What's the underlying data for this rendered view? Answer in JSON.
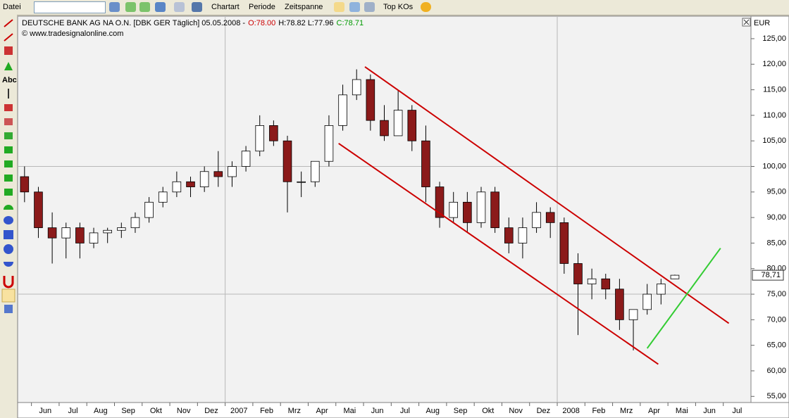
{
  "toolbar": {
    "menu": "Datei",
    "chart_type": "Chartart",
    "period": "Periode",
    "timespan": "Zeitspanne",
    "top": "Top KOs"
  },
  "tools": {
    "text_tool": "Abc"
  },
  "chart_data": {
    "type": "candlestick",
    "title": "DEUTSCHE BANK AG NA O.N. [DBK GER  Täglich] 05.05.2008 -",
    "quote_open": "O:78.00",
    "quote_hl": "H:78.82 L:77.96",
    "quote_close": "C:78.71",
    "source": "© www.tradesignalonline.com",
    "y_label": "EUR",
    "categories": [
      null,
      "Jun",
      null,
      "Jul",
      null,
      "Aug",
      null,
      "Sep",
      null,
      "Okt",
      null,
      "Nov",
      null,
      "Dez",
      null,
      "2007",
      null,
      "Feb",
      null,
      "Mrz",
      null,
      "Apr",
      null,
      "Mai",
      null,
      "Jun",
      null,
      "Jul",
      null,
      "Aug",
      null,
      "Sep",
      null,
      "Okt",
      null,
      "Nov",
      null,
      "Dez",
      null,
      "2008",
      null,
      "Feb",
      null,
      "Mrz",
      null,
      "Apr",
      null,
      "Mai",
      null,
      "Jun",
      null,
      "Jul",
      null
    ],
    "open": [
      98,
      95,
      88,
      86,
      88,
      85,
      87,
      87.5,
      88,
      90,
      93,
      95,
      97,
      96,
      99,
      98,
      100,
      103,
      108,
      105,
      97,
      97,
      101,
      108,
      114,
      117,
      109,
      106,
      111,
      105,
      96,
      90,
      93,
      89,
      95,
      88,
      85,
      88,
      91,
      89,
      81,
      77,
      78,
      76,
      70,
      72,
      75,
      78,
      null,
      null,
      null,
      null,
      null
    ],
    "high": [
      100,
      96,
      91,
      89,
      89,
      88,
      88,
      89,
      91,
      94,
      96,
      99,
      98,
      100,
      103,
      101,
      104,
      110,
      109,
      106,
      99,
      101,
      110,
      116,
      119,
      118,
      112,
      115,
      112,
      108,
      97,
      95,
      95,
      96,
      96,
      90,
      90,
      93,
      92,
      90,
      83,
      80,
      79,
      78,
      72,
      77,
      78,
      78.82,
      null,
      null,
      null,
      null,
      null
    ],
    "low": [
      93,
      86,
      81,
      82,
      82,
      84,
      85,
      86,
      87,
      89,
      92,
      94,
      94,
      95,
      96,
      96,
      99,
      102,
      104,
      91,
      94,
      96,
      100,
      107,
      113,
      107,
      105,
      106,
      103,
      93,
      88,
      89,
      87,
      88,
      87,
      83,
      82,
      87,
      86,
      79,
      67,
      74,
      74,
      68,
      64,
      71,
      73,
      77.96,
      null,
      null,
      null,
      null,
      null
    ],
    "close": [
      95,
      88,
      86,
      88,
      85,
      87,
      87.5,
      88,
      90,
      93,
      95,
      97,
      96,
      99,
      98,
      100,
      103,
      108,
      105,
      97,
      97,
      101,
      108,
      114,
      117,
      109,
      106,
      111,
      105,
      96,
      90,
      93,
      89,
      95,
      88,
      85,
      88,
      91,
      89,
      81,
      77,
      78,
      76,
      70,
      72,
      75,
      77,
      78.71,
      null,
      null,
      null,
      null,
      null
    ],
    "up_color": "#ffffff",
    "down_color": "#8b1a1a",
    "ylim": [
      53.8,
      129.4
    ],
    "yticks": [
      {
        "value": 55,
        "label": "55,00"
      },
      {
        "value": 60,
        "label": "60,00"
      },
      {
        "value": 65,
        "label": "65,00"
      },
      {
        "value": 70,
        "label": "70,00"
      },
      {
        "value": 75,
        "label": "75,00"
      },
      {
        "value": 80,
        "label": "80,00"
      },
      {
        "value": 85,
        "label": "85,00"
      },
      {
        "value": 90,
        "label": "90,00"
      },
      {
        "value": 95,
        "label": "95,00"
      },
      {
        "value": 100,
        "label": "100,00"
      },
      {
        "value": 105,
        "label": "105,00"
      },
      {
        "value": 110,
        "label": "110,00"
      },
      {
        "value": 115,
        "label": "115,00"
      },
      {
        "value": 120,
        "label": "120,00"
      },
      {
        "value": 125,
        "label": "125,00"
      }
    ],
    "ygrid": [
      75,
      100
    ],
    "last_price": {
      "value": 78.71,
      "label": "78,71"
    },
    "trendlines": [
      {
        "color": "#cc0000",
        "x": [
          24.6,
          50.9
        ],
        "y": [
          119.5,
          69.3
        ]
      },
      {
        "color": "#cc0000",
        "x": [
          22.7,
          45.8
        ],
        "y": [
          104.5,
          61.3
        ]
      },
      {
        "color": "#33cc33",
        "x": [
          45.0,
          50.3
        ],
        "y": [
          64.4,
          84
        ]
      }
    ]
  }
}
